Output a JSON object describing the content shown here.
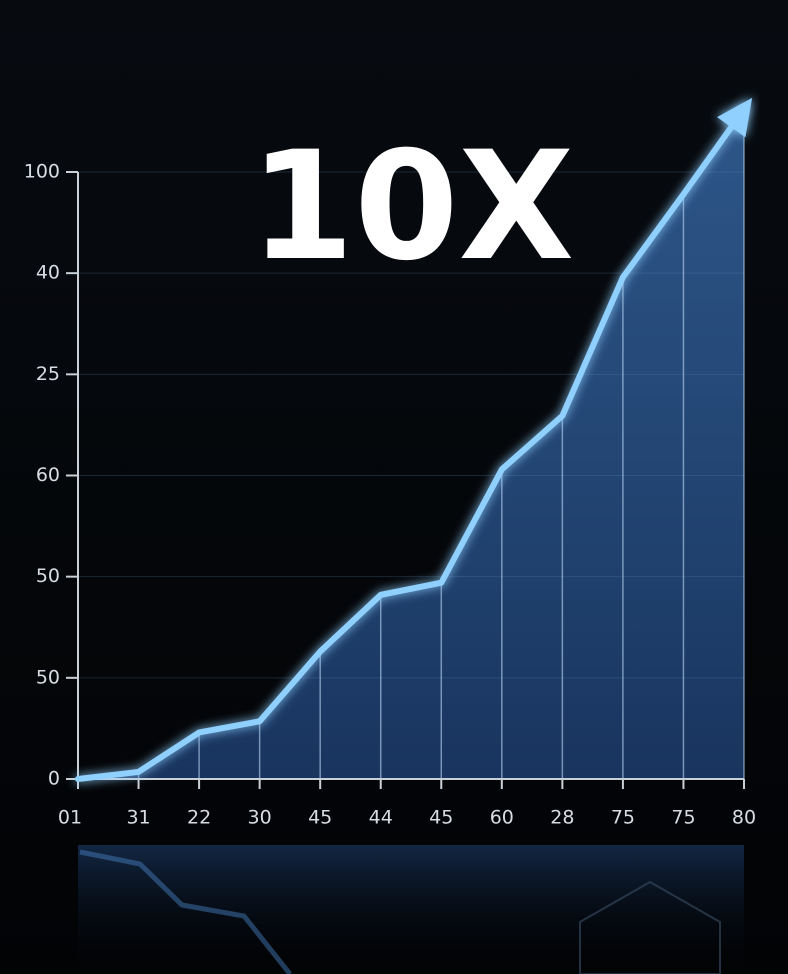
{
  "chart_data": {
    "type": "line",
    "title": "10X",
    "categories": [
      "01",
      "31",
      "22",
      "30",
      "45",
      "44",
      "45",
      "60",
      "28",
      "75",
      "75",
      "80"
    ],
    "values": [
      0,
      0.07,
      0.46,
      0.57,
      1.26,
      1.82,
      1.94,
      3.06,
      3.59,
      4.96,
      5.78,
      6.62
    ],
    "color": "#8fd0ff",
    "ylim": [
      0,
      6
    ],
    "yticks": [
      {
        "value": 0,
        "label": "0"
      },
      {
        "value": 1,
        "label": "50"
      },
      {
        "value": 2,
        "label": "50"
      },
      {
        "value": 3,
        "label": "60"
      },
      {
        "value": 4,
        "label": "25"
      },
      {
        "value": 5,
        "label": "40"
      },
      {
        "value": 6,
        "label": "100"
      }
    ],
    "grid": true
  }
}
